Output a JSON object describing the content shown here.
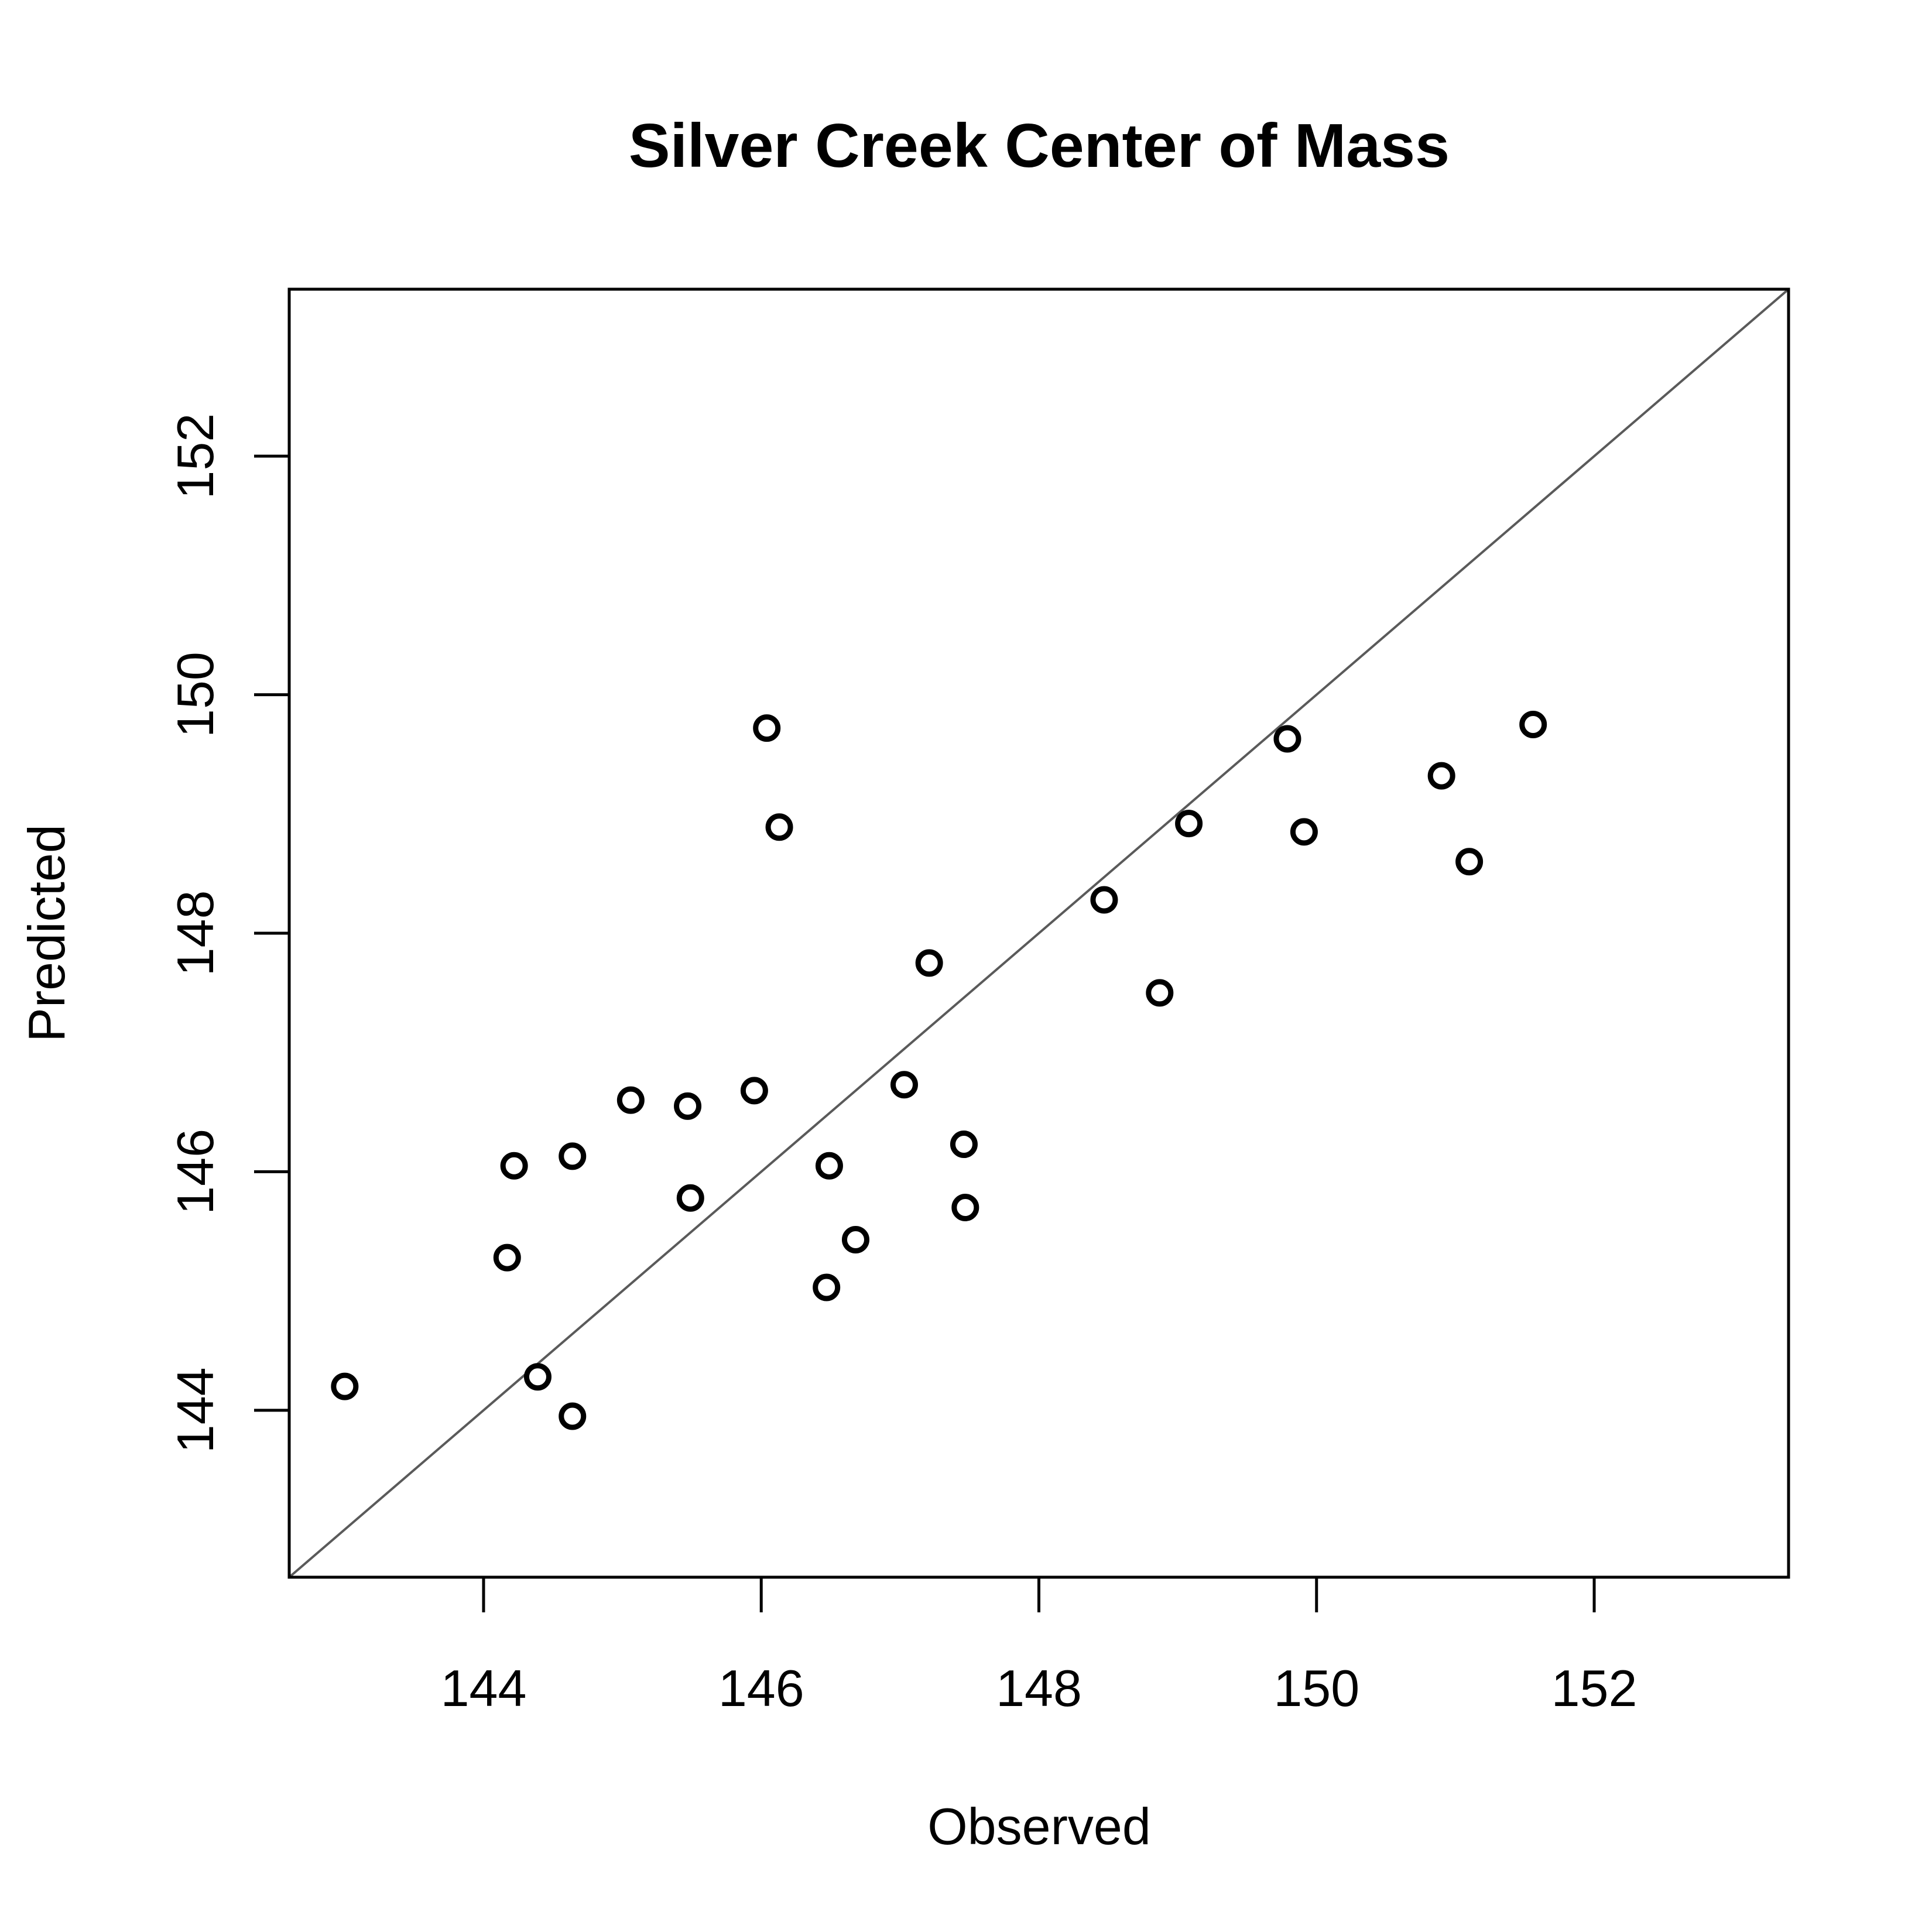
{
  "chart_data": {
    "type": "scatter",
    "title": "Silver Creek Center of Mass",
    "xlabel": "Observed",
    "ylabel": "Predicted",
    "xlim": [
      142.6,
      153.4
    ],
    "ylim": [
      142.6,
      153.4
    ],
    "xticks": [
      144,
      146,
      148,
      150,
      152
    ],
    "yticks": [
      144,
      146,
      148,
      150,
      152
    ],
    "xtick_labels": [
      "144",
      "146",
      "148",
      "150",
      "152"
    ],
    "ytick_labels": [
      "144",
      "146",
      "148",
      "150",
      "152"
    ],
    "grid": false,
    "reference_line": "y = x",
    "colors": {
      "points": "#000000",
      "reference_line": "#5a5a5a",
      "frame": "#000000"
    },
    "points": [
      {
        "x": 143.0,
        "y": 144.2
      },
      {
        "x": 144.17,
        "y": 145.28
      },
      {
        "x": 144.22,
        "y": 146.05
      },
      {
        "x": 144.39,
        "y": 144.28
      },
      {
        "x": 144.64,
        "y": 143.95
      },
      {
        "x": 144.64,
        "y": 146.13
      },
      {
        "x": 145.06,
        "y": 146.6
      },
      {
        "x": 145.47,
        "y": 146.55
      },
      {
        "x": 145.49,
        "y": 145.78
      },
      {
        "x": 145.95,
        "y": 146.68
      },
      {
        "x": 146.04,
        "y": 149.72
      },
      {
        "x": 146.13,
        "y": 148.89
      },
      {
        "x": 146.47,
        "y": 145.03
      },
      {
        "x": 146.49,
        "y": 146.05
      },
      {
        "x": 146.68,
        "y": 145.43
      },
      {
        "x": 147.03,
        "y": 146.73
      },
      {
        "x": 147.21,
        "y": 147.75
      },
      {
        "x": 147.46,
        "y": 146.23
      },
      {
        "x": 147.47,
        "y": 145.7
      },
      {
        "x": 148.47,
        "y": 148.28
      },
      {
        "x": 148.87,
        "y": 147.5
      },
      {
        "x": 149.08,
        "y": 148.92
      },
      {
        "x": 149.79,
        "y": 149.63
      },
      {
        "x": 149.91,
        "y": 148.85
      },
      {
        "x": 150.9,
        "y": 149.32
      },
      {
        "x": 151.1,
        "y": 148.6
      },
      {
        "x": 151.56,
        "y": 149.75
      }
    ]
  }
}
